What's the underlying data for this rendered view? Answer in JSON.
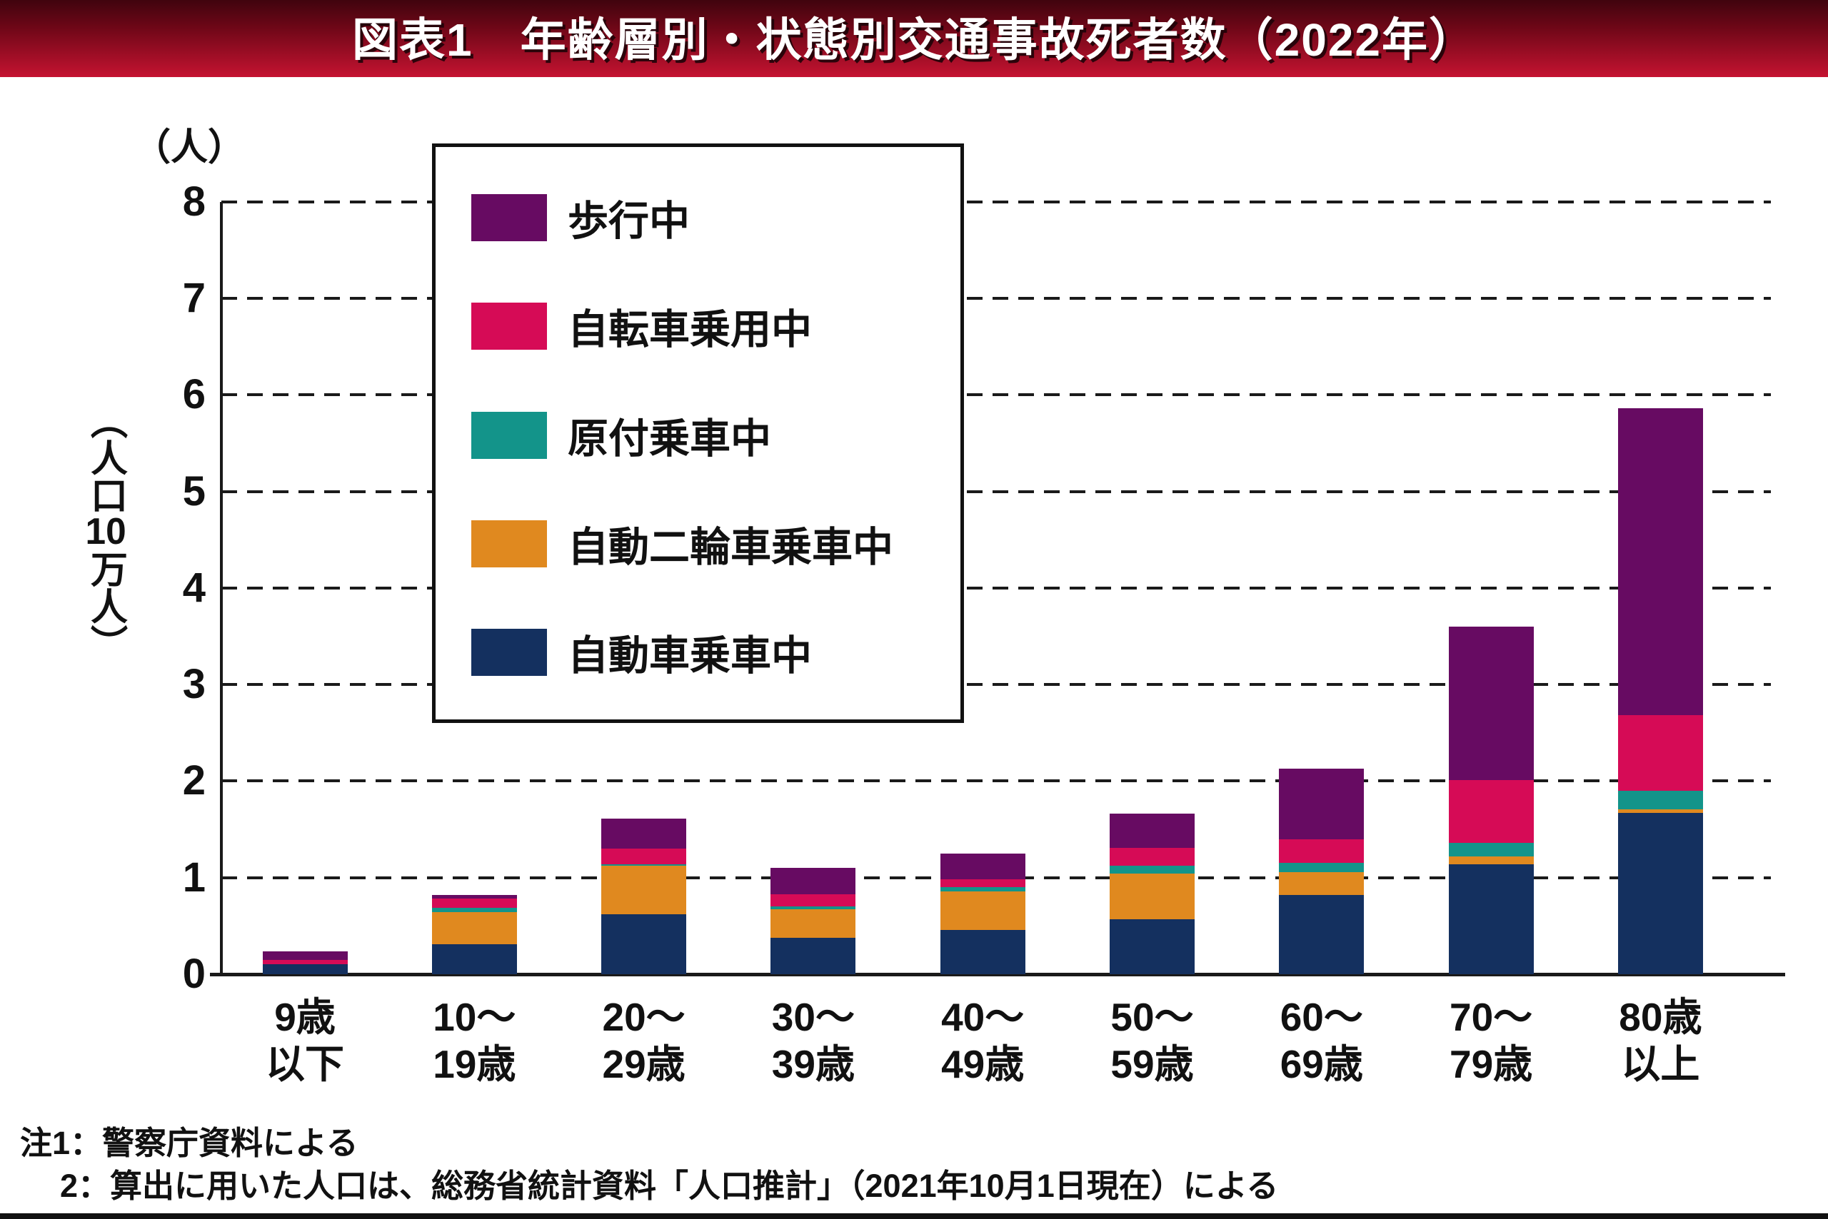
{
  "banner": {
    "title": "図表1　年齢層別・状態別交通事故死者数（2022年）",
    "bg_top": "#40040e",
    "bg_bottom": "#c51331"
  },
  "y_axis": {
    "top_unit": "（人）",
    "side_unit_parts": [
      "（人口",
      "10",
      "万人）"
    ],
    "ticks": [
      0,
      1,
      2,
      3,
      4,
      5,
      6,
      7,
      8
    ]
  },
  "chart_data": {
    "type": "bar",
    "stacked": true,
    "title": "年齢層別・状態別交通事故死者数（2022年）",
    "ylabel": "（人口10万人）",
    "yunit": "（人）",
    "ylim": [
      0,
      8
    ],
    "grid": "horizontal dashed lines at each integer",
    "legend_position": "upper-left box, items top to bottom: 歩行中, 自転車乗用中, 原付乗車中, 自動二輪車乗車中, 自動車乗車中",
    "categories": [
      "9歳以下",
      "10〜19歳",
      "20〜29歳",
      "30〜39歳",
      "40〜49歳",
      "50〜59歳",
      "60〜69歳",
      "70〜79歳",
      "80歳以上"
    ],
    "category_lines": [
      [
        "9歳",
        "以下"
      ],
      [
        "10〜",
        "19歳"
      ],
      [
        "20〜",
        "29歳"
      ],
      [
        "30〜",
        "39歳"
      ],
      [
        "40〜",
        "49歳"
      ],
      [
        "50〜",
        "59歳"
      ],
      [
        "60〜",
        "69歳"
      ],
      [
        "70〜",
        "79歳"
      ],
      [
        "80歳",
        "以上"
      ]
    ],
    "series": [
      {
        "name": "自動車乗車中",
        "color": "#14305f",
        "values": [
          0.1,
          0.31,
          0.62,
          0.38,
          0.46,
          0.57,
          0.82,
          1.14,
          1.67
        ]
      },
      {
        "name": "自動二輪車乗車中",
        "color": "#e0891f",
        "values": [
          0.0,
          0.33,
          0.5,
          0.29,
          0.4,
          0.47,
          0.24,
          0.08,
          0.04
        ]
      },
      {
        "name": "原付乗車中",
        "color": "#13948a",
        "values": [
          0.0,
          0.05,
          0.02,
          0.03,
          0.04,
          0.08,
          0.09,
          0.14,
          0.19
        ]
      },
      {
        "name": "自転車乗用中",
        "color": "#d60b56",
        "values": [
          0.05,
          0.09,
          0.16,
          0.13,
          0.08,
          0.19,
          0.25,
          0.65,
          0.78
        ]
      },
      {
        "name": "歩行中",
        "color": "#670b62",
        "values": [
          0.09,
          0.04,
          0.31,
          0.27,
          0.27,
          0.35,
          0.73,
          1.59,
          3.18
        ]
      }
    ],
    "totals": [
      0.24,
      0.82,
      1.61,
      1.1,
      1.25,
      1.66,
      2.13,
      3.6,
      5.86
    ]
  },
  "notes": {
    "line1": "注1：警察庁資料による",
    "line2": "2：算出に用いた人口は、総務省統計資料「人口推計」（2021年10月1日現在）による"
  }
}
